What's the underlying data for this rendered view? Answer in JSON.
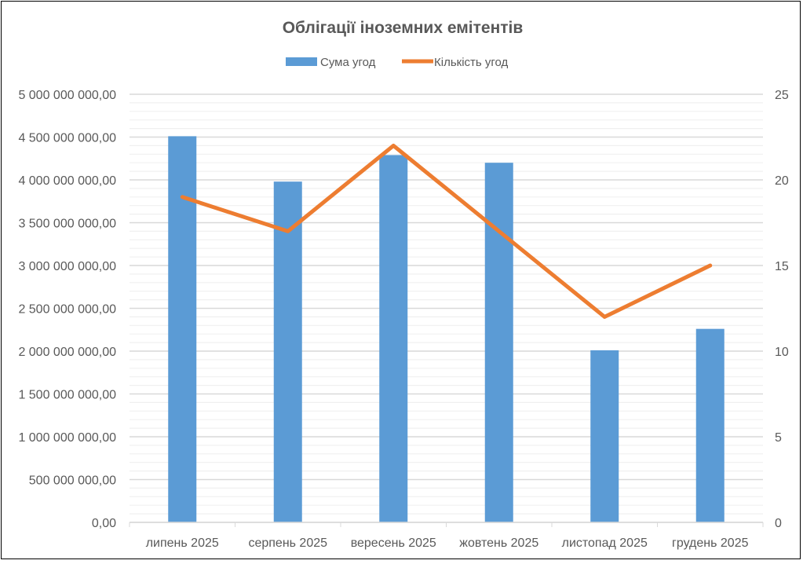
{
  "chart_data": {
    "type": "bar",
    "title": "Облігації іноземних емітентів",
    "categories": [
      "липень 2025",
      "серпень 2025",
      "вересень 2025",
      "жовтень 2025",
      "листопад 2025",
      "грудень 2025"
    ],
    "series": [
      {
        "name": "Сума угод",
        "type": "bar",
        "axis": "left",
        "color": "#5B9BD5",
        "values": [
          4510000000,
          3980000000,
          4290000000,
          4200000000,
          2010000000,
          2260000000
        ]
      },
      {
        "name": "Кількість угод",
        "type": "line",
        "axis": "right",
        "color": "#ED7D31",
        "values": [
          19,
          17,
          22,
          17,
          12,
          15
        ]
      }
    ],
    "y_left": {
      "min": 0,
      "max": 5000000000,
      "step": 500000000,
      "minor_step": 100000000,
      "tick_labels": [
        "0,00",
        "500 000 000,00",
        "1 000 000 000,00",
        "1 500 000 000,00",
        "2 000 000 000,00",
        "2 500 000 000,00",
        "3 000 000 000,00",
        "3 500 000 000,00",
        "4 000 000 000,00",
        "4 500 000 000,00",
        "5 000 000 000,00"
      ]
    },
    "y_right": {
      "min": 0,
      "max": 25,
      "step": 5,
      "tick_labels": [
        "0",
        "5",
        "10",
        "15",
        "20",
        "25"
      ]
    },
    "grid": true,
    "legend": "top"
  }
}
